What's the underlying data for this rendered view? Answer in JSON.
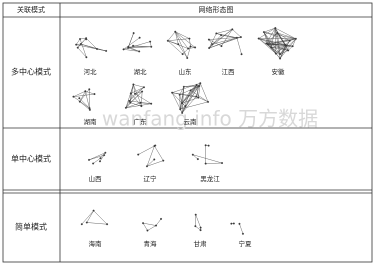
{
  "table": {
    "header": [
      "关联模式",
      "网络形态图"
    ],
    "rows": [
      {
        "mode": "多中心模式",
        "diagrams": [
          "河北",
          "湖北",
          "山东",
          "江西",
          "安徽",
          "湖南",
          "广东",
          "云南"
        ]
      },
      {
        "mode": "单中心模式",
        "diagrams": [
          "山西",
          "辽宁",
          "黑龙江"
        ]
      },
      {
        "mode": "简单模式",
        "diagrams": [
          "海南",
          "青海",
          "甘肃",
          "宁夏"
        ]
      }
    ]
  },
  "watermark": "wanfang.info 万方数据"
}
